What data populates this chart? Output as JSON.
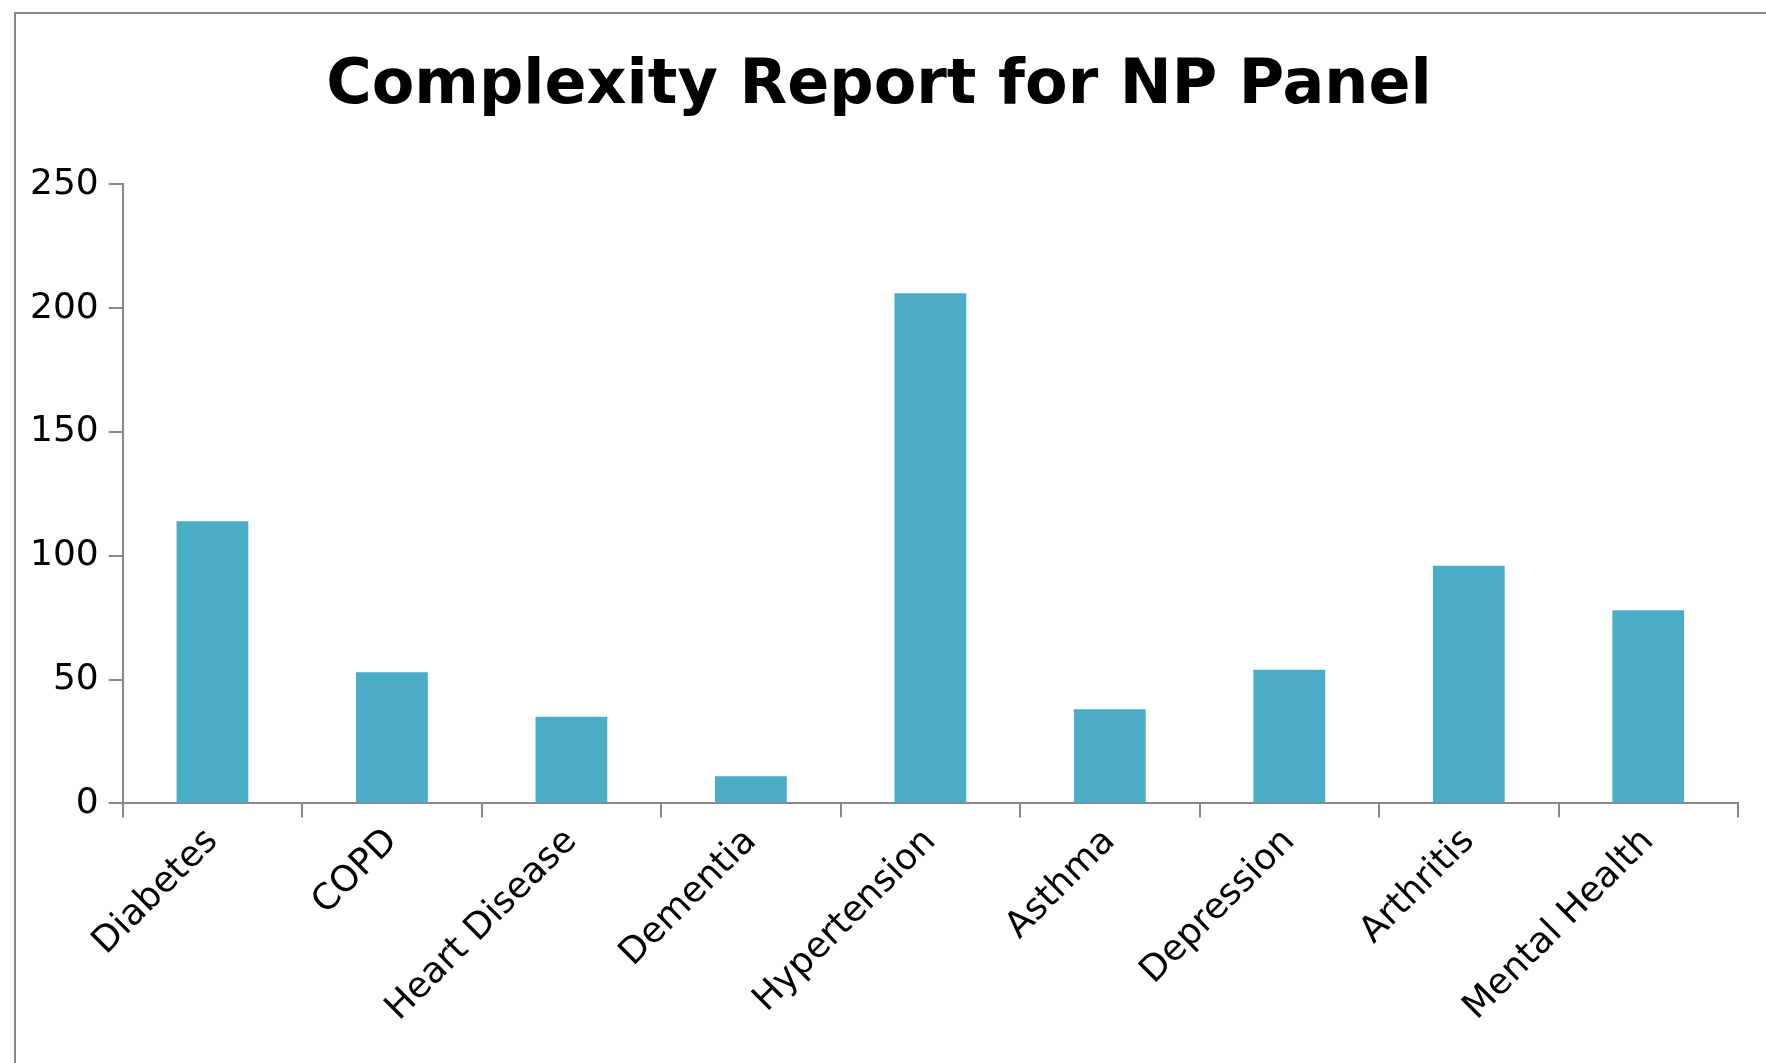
{
  "chart_data": {
    "type": "bar",
    "title": "Complexity Report for NP Panel",
    "categories": [
      "Diabetes",
      "COPD",
      "Heart Disease",
      "Dementia",
      "Hypertension",
      "Asthma",
      "Depression",
      "Arthritis",
      "Mental Health"
    ],
    "values": [
      114,
      53,
      35,
      11,
      206,
      38,
      54,
      96,
      78
    ],
    "color": "#4bacc6",
    "ylim": [
      0,
      250
    ],
    "yticks": [
      0,
      50,
      100,
      150,
      200,
      250
    ],
    "grid": false,
    "legend": false
  }
}
